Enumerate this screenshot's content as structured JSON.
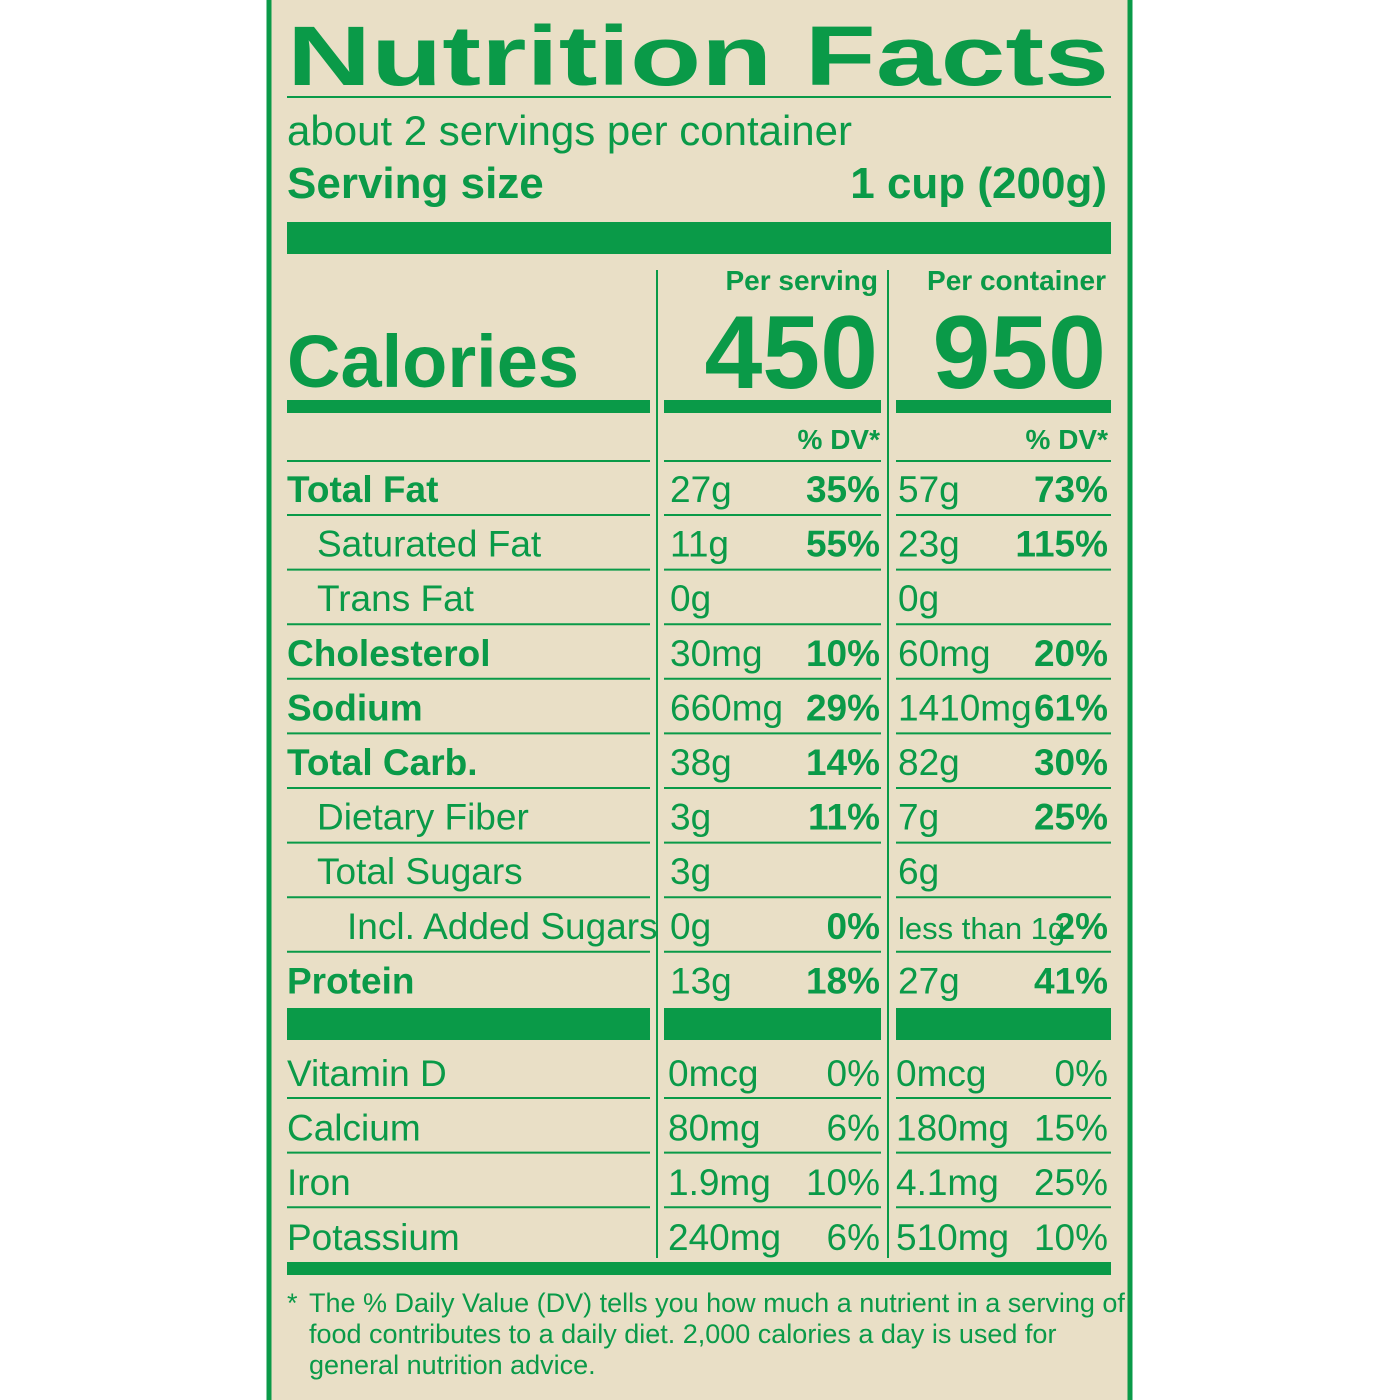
{
  "title": "Nutrition Facts",
  "servings": "about 2 servings per container",
  "serving_size": {
    "label": "Serving size",
    "value": "1 cup (200g)"
  },
  "calories": {
    "label": "Calories",
    "columns": [
      {
        "header": "Per serving",
        "value": "450",
        "dv_header": "% DV*"
      },
      {
        "header": "Per container",
        "value": "950",
        "dv_header": "% DV*"
      }
    ]
  },
  "nutrients": [
    {
      "name": "Total Fat",
      "serving": {
        "amount": "27g",
        "dv": "35%"
      },
      "container": {
        "amount": "57g",
        "dv": "73%"
      }
    },
    {
      "name": "Saturated Fat",
      "serving": {
        "amount": "11g",
        "dv": "55%"
      },
      "container": {
        "amount": "23g",
        "dv": "115%"
      }
    },
    {
      "name": "Trans Fat",
      "serving": {
        "amount": "0g"
      },
      "container": {
        "amount": "0g"
      }
    },
    {
      "name": "Cholesterol",
      "serving": {
        "amount": "30mg",
        "dv": "10%"
      },
      "container": {
        "amount": "60mg",
        "dv": "20%"
      }
    },
    {
      "name": "Sodium",
      "serving": {
        "amount": "660mg",
        "dv": "29%"
      },
      "container": {
        "amount": "1410mg",
        "dv": "61%"
      }
    },
    {
      "name": "Total Carb.",
      "serving": {
        "amount": "38g",
        "dv": "14%"
      },
      "container": {
        "amount": "82g",
        "dv": "30%"
      }
    },
    {
      "name": "Dietary Fiber",
      "serving": {
        "amount": "3g",
        "dv": "11%"
      },
      "container": {
        "amount": "7g",
        "dv": "25%"
      }
    },
    {
      "name": "Total Sugars",
      "serving": {
        "amount": "3g"
      },
      "container": {
        "amount": "6g"
      }
    },
    {
      "name": "Incl. Added Sugars",
      "serving": {
        "amount": "0g",
        "dv": "0%"
      },
      "container": {
        "amount": "less than 1g",
        "dv": "2%"
      }
    },
    {
      "name": "Protein",
      "serving": {
        "amount": "13g",
        "dv": "18%"
      },
      "container": {
        "amount": "27g",
        "dv": "41%"
      }
    }
  ],
  "vitamins": [
    {
      "name": "Vitamin D",
      "serving": {
        "amount": "0mcg",
        "dv": "0%"
      },
      "container": {
        "amount": "0mcg",
        "dv": "0%"
      }
    },
    {
      "name": "Calcium",
      "serving": {
        "amount": "80mg",
        "dv": "6%"
      },
      "container": {
        "amount": "180mg",
        "dv": "15%"
      }
    },
    {
      "name": "Iron",
      "serving": {
        "amount": "1.9mg",
        "dv": "10%"
      },
      "container": {
        "amount": "4.1mg",
        "dv": "25%"
      }
    },
    {
      "name": "Potassium",
      "serving": {
        "amount": "240mg",
        "dv": "6%"
      },
      "container": {
        "amount": "510mg",
        "dv": "10%"
      }
    }
  ],
  "footnote": {
    "mark": "*",
    "lines": [
      "The % Daily Value (DV) tells you how much a nutrient in a serving of",
      "food contributes to a daily diet. 2,000 calories a day is used for",
      "general nutrition advice."
    ]
  }
}
